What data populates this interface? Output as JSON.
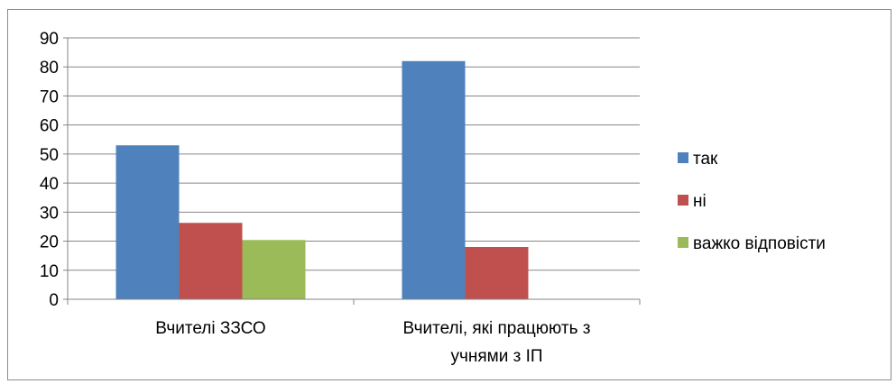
{
  "chart_data": {
    "type": "bar",
    "categories": [
      [
        "Вчителі ЗЗСО"
      ],
      [
        "Вчителі, які працюють з",
        "учнями з ІП"
      ]
    ],
    "series": [
      {
        "name": "так",
        "color": "#4F81BD",
        "values": [
          53,
          82
        ]
      },
      {
        "name": "ні",
        "color": "#C0504D",
        "values": [
          26.3,
          18
        ]
      },
      {
        "name": "важко відповісти",
        "color": "#9BBB59",
        "values": [
          20.4,
          null
        ]
      }
    ],
    "ylim": [
      0,
      90
    ],
    "y_ticks": [
      0,
      10,
      20,
      30,
      40,
      50,
      60,
      70,
      80,
      90
    ],
    "grid": true,
    "legend_position": "right",
    "title": "",
    "xlabel": "",
    "ylabel": ""
  }
}
